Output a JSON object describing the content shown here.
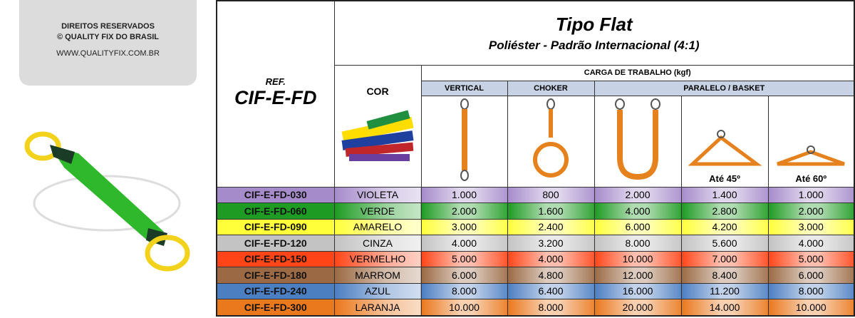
{
  "sidebar": {
    "rights": "DIREITOS RESERVADOS",
    "company": "© QUALITY FIX DO BRASIL",
    "website": "WWW.QUALITYFIX.COM.BR"
  },
  "header": {
    "title": "Tipo Flat",
    "subtitle": "Poliéster - Padrão Internacional (4:1)",
    "ref_label": "REF.",
    "ref_code": "CIF-E-FD",
    "color_label": "COR",
    "load_label": "CARGA DE TRABALHO (kgf)",
    "vertical": "VERTICAL",
    "choker": "CHOKER",
    "basket": "PARALELO / BASKET",
    "angle_45": "Até 45º",
    "angle_60": "Até 60º"
  },
  "table": {
    "rows": [
      {
        "ref": "CIF-E-FD-030",
        "color_name": "VIOLETA",
        "color": "#a68bcb",
        "values": [
          "1.000",
          "800",
          "2.000",
          "1.400",
          "1.000"
        ]
      },
      {
        "ref": "CIF-E-FD-060",
        "color_name": "VERDE",
        "color": "#1e9b22",
        "values": [
          "2.000",
          "1.600",
          "4.000",
          "2.800",
          "2.000"
        ]
      },
      {
        "ref": "CIF-E-FD-090",
        "color_name": "AMARELO",
        "color": "#ffff3a",
        "values": [
          "3.000",
          "2.400",
          "6.000",
          "4.200",
          "3.000"
        ]
      },
      {
        "ref": "CIF-E-FD-120",
        "color_name": "CINZA",
        "color": "#c3c3c3",
        "values": [
          "4.000",
          "3.200",
          "8.000",
          "5.600",
          "4.000"
        ]
      },
      {
        "ref": "CIF-E-FD-150",
        "color_name": "VERMELHO",
        "color": "#ff4518",
        "values": [
          "5.000",
          "4.000",
          "10.000",
          "7.000",
          "5.000"
        ]
      },
      {
        "ref": "CIF-E-FD-180",
        "color_name": "MARROM",
        "color": "#9b6a44",
        "values": [
          "6.000",
          "4.800",
          "12.000",
          "8.400",
          "6.000"
        ]
      },
      {
        "ref": "CIF-E-FD-240",
        "color_name": "AZUL",
        "color": "#4c7ec2",
        "values": [
          "8.000",
          "6.400",
          "16.000",
          "11.200",
          "8.000"
        ]
      },
      {
        "ref": "CIF-E-FD-300",
        "color_name": "LARANJA",
        "color": "#ea781d",
        "values": [
          "10.000",
          "8.000",
          "20.000",
          "14.000",
          "10.000"
        ]
      }
    ]
  }
}
